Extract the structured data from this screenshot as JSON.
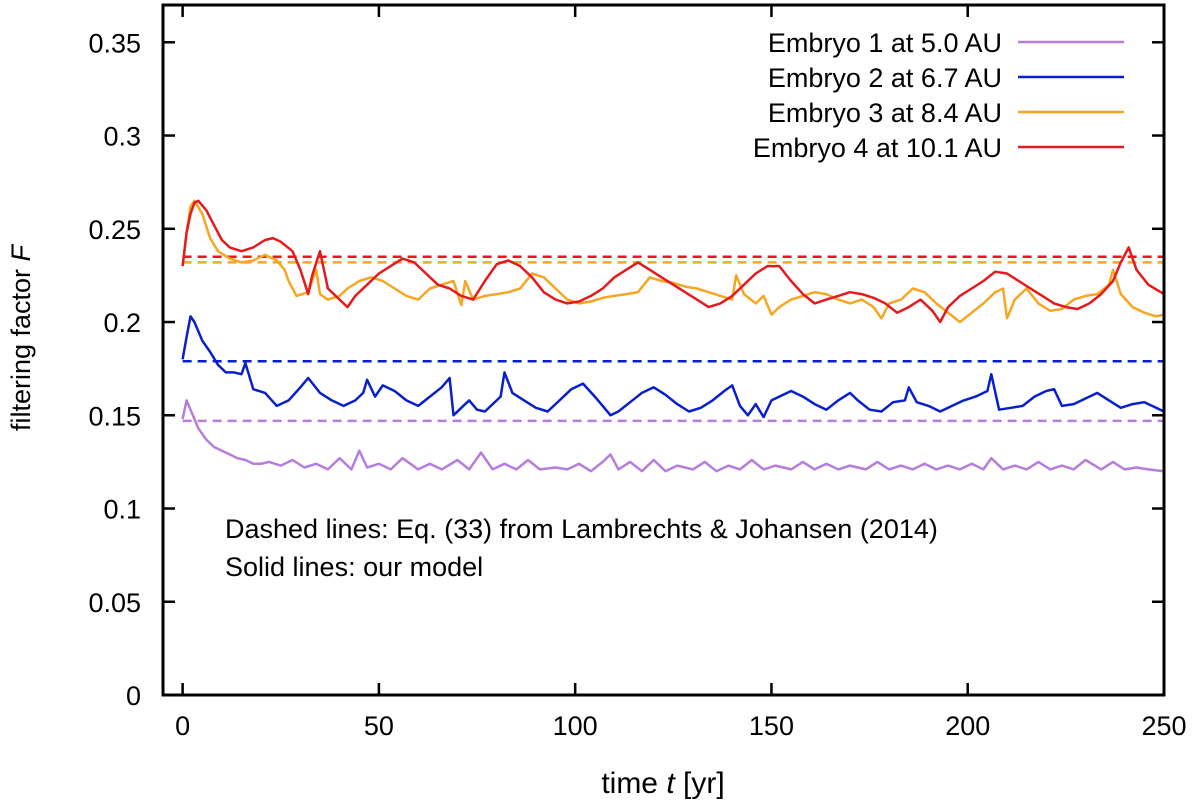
{
  "chart_data": {
    "type": "line",
    "title": "",
    "xlabel_prefix": "time ",
    "xlabel_var": "t",
    "xlabel_unit": " [yr]",
    "ylabel_prefix": "filtering factor ",
    "ylabel_var": "F",
    "xlim": [
      -5,
      250
    ],
    "ylim": [
      0,
      0.37
    ],
    "xticks": [
      0,
      50,
      100,
      150,
      200,
      250
    ],
    "yticks": [
      0,
      0.05,
      0.1,
      0.15,
      0.2,
      0.25,
      0.3,
      0.35
    ],
    "ytick_labels": [
      "0",
      "0.05",
      "0.1",
      "0.15",
      "0.2",
      "0.25",
      "0.3",
      "0.35"
    ],
    "legend_position": "top-right",
    "annotations": [
      "Dashed lines: Eq. (33) from Lambrechts & Johansen (2014)",
      "Solid lines: our model"
    ],
    "series": [
      {
        "name": "Embryo 1 at 5.0 AU",
        "color": "#b57edc",
        "dashed_value": 0.147,
        "x": [
          0,
          1,
          2,
          4,
          6,
          8,
          10,
          12,
          14,
          16,
          18,
          20,
          22,
          25,
          28,
          31,
          34,
          37,
          40,
          43,
          45,
          47,
          50,
          53,
          56,
          60,
          63,
          66,
          70,
          73,
          76,
          79,
          82,
          85,
          88,
          91,
          95,
          98,
          101,
          104,
          107,
          109,
          111,
          114,
          117,
          120,
          123,
          126,
          130,
          133,
          136,
          139,
          142,
          145,
          148,
          151,
          155,
          158,
          161,
          164,
          167,
          170,
          174,
          177,
          180,
          183,
          186,
          189,
          192,
          195,
          198,
          201,
          204,
          206,
          209,
          212,
          215,
          218,
          221,
          224,
          227,
          230,
          234,
          237,
          240,
          243,
          246,
          250
        ],
        "y": [
          0.148,
          0.158,
          0.153,
          0.143,
          0.137,
          0.133,
          0.131,
          0.129,
          0.127,
          0.126,
          0.124,
          0.124,
          0.125,
          0.123,
          0.126,
          0.122,
          0.124,
          0.121,
          0.127,
          0.121,
          0.131,
          0.122,
          0.124,
          0.121,
          0.127,
          0.121,
          0.124,
          0.121,
          0.126,
          0.121,
          0.13,
          0.121,
          0.124,
          0.121,
          0.126,
          0.121,
          0.122,
          0.121,
          0.124,
          0.12,
          0.125,
          0.129,
          0.121,
          0.125,
          0.12,
          0.126,
          0.12,
          0.123,
          0.121,
          0.125,
          0.12,
          0.123,
          0.121,
          0.126,
          0.121,
          0.123,
          0.121,
          0.125,
          0.121,
          0.124,
          0.121,
          0.123,
          0.121,
          0.125,
          0.121,
          0.123,
          0.121,
          0.124,
          0.121,
          0.123,
          0.121,
          0.124,
          0.121,
          0.127,
          0.121,
          0.123,
          0.121,
          0.125,
          0.121,
          0.123,
          0.121,
          0.126,
          0.121,
          0.125,
          0.121,
          0.122,
          0.121,
          0.12
        ]
      },
      {
        "name": "Embryo 2 at 6.7 AU",
        "color": "#0a1fcc",
        "dashed_value": 0.179,
        "x": [
          0,
          1,
          2,
          3,
          5,
          7,
          9,
          11,
          13,
          15,
          16,
          18,
          21,
          24,
          27,
          30,
          32,
          35,
          38,
          41,
          44,
          46,
          47,
          49,
          51,
          54,
          57,
          60,
          63,
          66,
          68,
          69,
          71,
          73,
          75,
          77,
          79,
          81,
          82,
          84,
          87,
          90,
          93,
          96,
          99,
          102,
          105,
          107,
          109,
          111,
          114,
          117,
          120,
          123,
          126,
          129,
          132,
          135,
          138,
          140,
          142,
          144,
          146,
          148,
          150,
          152,
          155,
          158,
          161,
          164,
          167,
          170,
          172,
          175,
          178,
          181,
          184,
          185,
          187,
          190,
          193,
          196,
          199,
          202,
          205,
          206,
          208,
          211,
          214,
          217,
          220,
          222,
          224,
          227,
          230,
          233,
          236,
          239,
          242,
          245,
          248,
          250
        ],
        "y": [
          0.18,
          0.192,
          0.203,
          0.2,
          0.19,
          0.184,
          0.177,
          0.173,
          0.173,
          0.172,
          0.178,
          0.164,
          0.162,
          0.155,
          0.158,
          0.165,
          0.17,
          0.162,
          0.158,
          0.155,
          0.158,
          0.162,
          0.169,
          0.16,
          0.166,
          0.163,
          0.158,
          0.155,
          0.16,
          0.165,
          0.17,
          0.15,
          0.154,
          0.158,
          0.153,
          0.152,
          0.156,
          0.16,
          0.173,
          0.162,
          0.158,
          0.154,
          0.152,
          0.158,
          0.164,
          0.167,
          0.16,
          0.155,
          0.15,
          0.152,
          0.157,
          0.162,
          0.165,
          0.161,
          0.156,
          0.152,
          0.154,
          0.158,
          0.163,
          0.166,
          0.155,
          0.15,
          0.156,
          0.149,
          0.158,
          0.16,
          0.163,
          0.16,
          0.156,
          0.153,
          0.158,
          0.162,
          0.158,
          0.153,
          0.152,
          0.157,
          0.158,
          0.165,
          0.157,
          0.155,
          0.152,
          0.155,
          0.158,
          0.16,
          0.163,
          0.172,
          0.153,
          0.154,
          0.155,
          0.16,
          0.163,
          0.164,
          0.155,
          0.156,
          0.159,
          0.162,
          0.158,
          0.154,
          0.156,
          0.157,
          0.154,
          0.152
        ]
      },
      {
        "name": "Embryo 3 at 8.4 AU",
        "color": "#f5a623",
        "dashed_value": 0.232,
        "x": [
          0,
          1,
          2,
          3,
          5,
          7,
          9,
          12,
          15,
          18,
          21,
          24,
          26,
          27,
          29,
          32,
          34,
          35,
          37,
          40,
          42,
          45,
          48,
          51,
          54,
          57,
          60,
          63,
          66,
          69,
          71,
          72,
          74,
          77,
          80,
          83,
          86,
          89,
          92,
          95,
          98,
          101,
          104,
          107,
          110,
          113,
          116,
          119,
          122,
          125,
          128,
          131,
          134,
          137,
          140,
          141,
          143,
          146,
          148,
          150,
          152,
          155,
          158,
          161,
          164,
          167,
          170,
          173,
          176,
          178,
          180,
          183,
          186,
          189,
          192,
          195,
          198,
          201,
          204,
          207,
          209,
          210,
          212,
          215,
          218,
          221,
          224,
          227,
          230,
          233,
          236,
          237,
          239,
          242,
          245,
          248,
          250
        ],
        "y": [
          0.23,
          0.248,
          0.262,
          0.265,
          0.258,
          0.245,
          0.238,
          0.234,
          0.232,
          0.233,
          0.236,
          0.233,
          0.228,
          0.222,
          0.214,
          0.216,
          0.228,
          0.215,
          0.212,
          0.214,
          0.218,
          0.222,
          0.224,
          0.222,
          0.218,
          0.214,
          0.212,
          0.218,
          0.22,
          0.222,
          0.209,
          0.222,
          0.212,
          0.214,
          0.215,
          0.216,
          0.218,
          0.226,
          0.224,
          0.218,
          0.212,
          0.21,
          0.211,
          0.213,
          0.214,
          0.215,
          0.216,
          0.224,
          0.222,
          0.221,
          0.219,
          0.218,
          0.216,
          0.214,
          0.212,
          0.225,
          0.215,
          0.21,
          0.214,
          0.204,
          0.208,
          0.212,
          0.214,
          0.216,
          0.215,
          0.212,
          0.21,
          0.212,
          0.208,
          0.202,
          0.21,
          0.212,
          0.218,
          0.216,
          0.21,
          0.205,
          0.2,
          0.205,
          0.21,
          0.216,
          0.218,
          0.202,
          0.212,
          0.218,
          0.21,
          0.206,
          0.207,
          0.212,
          0.214,
          0.215,
          0.22,
          0.228,
          0.215,
          0.208,
          0.205,
          0.203,
          0.204
        ]
      },
      {
        "name": "Embryo 4 at 10.1 AU",
        "color": "#e41a1c",
        "dashed_value": 0.235,
        "x": [
          0,
          1,
          2,
          3,
          4,
          6,
          8,
          10,
          12,
          15,
          18,
          21,
          23,
          25,
          28,
          30,
          32,
          33,
          35,
          37,
          40,
          42,
          44,
          47,
          50,
          53,
          56,
          59,
          62,
          65,
          68,
          71,
          74,
          77,
          80,
          83,
          86,
          89,
          92,
          95,
          98,
          101,
          104,
          107,
          110,
          113,
          116,
          119,
          122,
          125,
          128,
          131,
          134,
          137,
          140,
          143,
          146,
          149,
          152,
          155,
          158,
          161,
          164,
          167,
          170,
          173,
          176,
          179,
          182,
          185,
          188,
          191,
          193,
          195,
          198,
          201,
          204,
          207,
          210,
          213,
          216,
          219,
          222,
          225,
          228,
          231,
          234,
          237,
          239,
          241,
          243,
          246,
          250
        ],
        "y": [
          0.23,
          0.248,
          0.258,
          0.264,
          0.265,
          0.26,
          0.252,
          0.244,
          0.24,
          0.238,
          0.24,
          0.244,
          0.245,
          0.243,
          0.238,
          0.228,
          0.215,
          0.225,
          0.238,
          0.218,
          0.212,
          0.208,
          0.214,
          0.22,
          0.226,
          0.23,
          0.234,
          0.232,
          0.226,
          0.22,
          0.218,
          0.214,
          0.212,
          0.222,
          0.231,
          0.233,
          0.23,
          0.224,
          0.216,
          0.212,
          0.21,
          0.211,
          0.214,
          0.218,
          0.224,
          0.228,
          0.232,
          0.228,
          0.224,
          0.22,
          0.216,
          0.212,
          0.208,
          0.21,
          0.214,
          0.22,
          0.226,
          0.23,
          0.23,
          0.222,
          0.215,
          0.21,
          0.212,
          0.214,
          0.216,
          0.215,
          0.213,
          0.21,
          0.205,
          0.208,
          0.212,
          0.206,
          0.2,
          0.208,
          0.214,
          0.218,
          0.222,
          0.227,
          0.226,
          0.222,
          0.218,
          0.214,
          0.21,
          0.208,
          0.207,
          0.21,
          0.215,
          0.222,
          0.232,
          0.24,
          0.228,
          0.22,
          0.215
        ]
      }
    ]
  }
}
